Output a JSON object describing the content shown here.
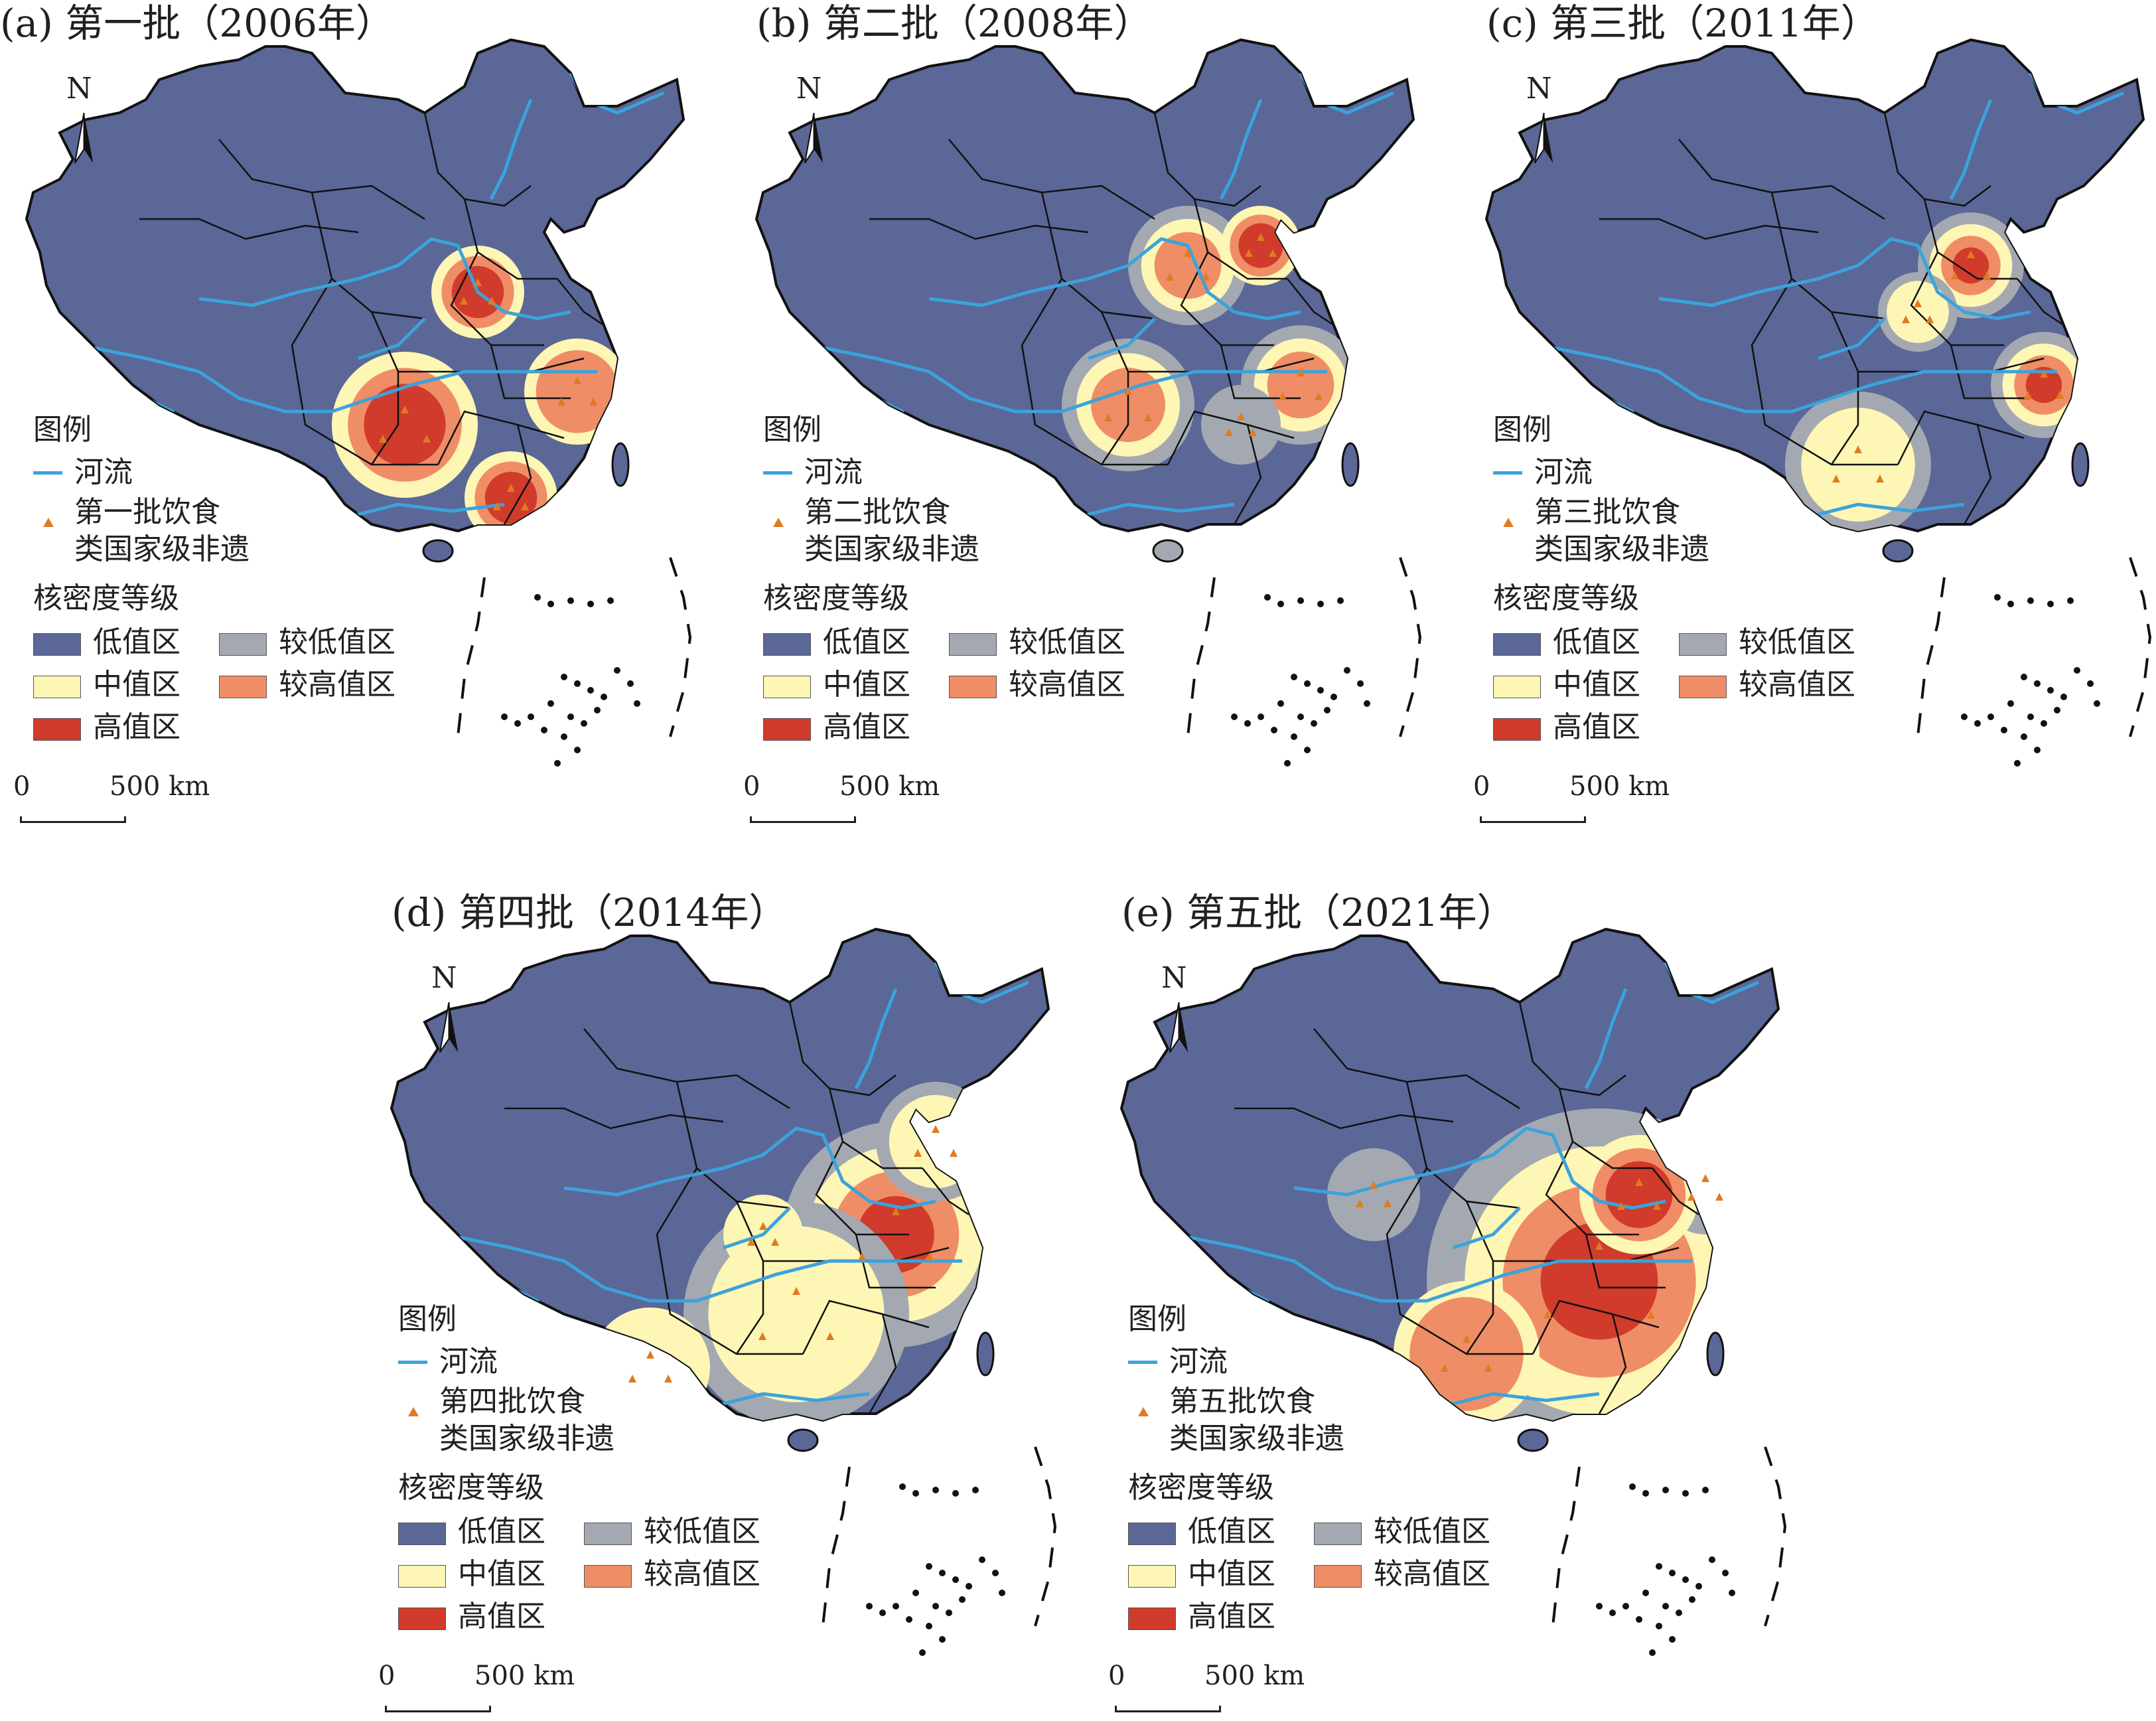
{
  "panels": [
    {
      "title": "(a) 第一批（2006年）",
      "point_label": "第一批饮食\n类国家级非遗"
    },
    {
      "title": "(b) 第二批（2008年）",
      "point_label": "第二批饮食\n类国家级非遗"
    },
    {
      "title": "(c) 第三批（2011年）",
      "point_label": "第三批饮食\n类国家级非遗"
    },
    {
      "title": "(d) 第四批（2014年）",
      "point_label": "第四批饮食\n类国家级非遗"
    },
    {
      "title": "(e) 第五批（2021年）",
      "point_label": "第五批饮食\n类国家级非遗"
    }
  ],
  "north": "N",
  "legend": {
    "title": "图例",
    "river": "河流",
    "density_title": "核密度等级",
    "classes": [
      {
        "label": "低值区",
        "color": "#5b6796"
      },
      {
        "label": "较低值区",
        "color": "#a4a9b1"
      },
      {
        "label": "中值区",
        "color": "#fdf6b5"
      },
      {
        "label": "较高值区",
        "color": "#ef8d66"
      },
      {
        "label": "高值区",
        "color": "#d03b2c"
      }
    ]
  },
  "scale": {
    "zero": "0",
    "distance": "500 km"
  },
  "colors": {
    "river": "#3aa3dc",
    "point": "#e07b22",
    "boundary": "#1a1a1a"
  }
}
